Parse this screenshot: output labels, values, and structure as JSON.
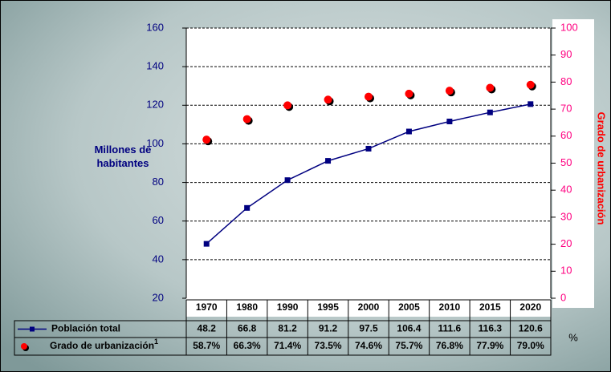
{
  "chart_data": {
    "type": "line",
    "y_label": "Millones de habitantes",
    "y2_label": "Grado de urbanización",
    "table_unit": "%",
    "categories": [
      "1970",
      "1980",
      "1990",
      "1995",
      "2000",
      "2005",
      "2010",
      "2015",
      "2020"
    ],
    "series": [
      {
        "name": "Población total",
        "color": "#000080",
        "marker": "square",
        "values": [
          48.2,
          66.8,
          81.2,
          91.2,
          97.5,
          106.4,
          111.6,
          116.3,
          120.6
        ]
      },
      {
        "name": "Grado de urbanización",
        "name_superscript": "1",
        "color": "#ff0000",
        "marker": "circle",
        "axis": "y2",
        "values": [
          58.7,
          66.3,
          71.4,
          73.5,
          74.6,
          75.7,
          76.8,
          77.9,
          79.0
        ],
        "value_labels": [
          "58.7%",
          "66.3%",
          "71.4%",
          "73.5%",
          "74.6%",
          "75.7%",
          "76.8%",
          "77.9%",
          "79.0%"
        ]
      }
    ],
    "ylim": [
      20,
      160
    ],
    "yticks": [
      20,
      40,
      60,
      80,
      100,
      120,
      140,
      160
    ],
    "y2lim": [
      0,
      100
    ],
    "y2ticks": [
      0,
      10,
      20,
      30,
      40,
      50,
      60,
      70,
      80,
      90,
      100
    ],
    "y_color": "#000080",
    "y2_color": "#ff0080",
    "y2_label_color": "#ff0000",
    "grid": true
  }
}
